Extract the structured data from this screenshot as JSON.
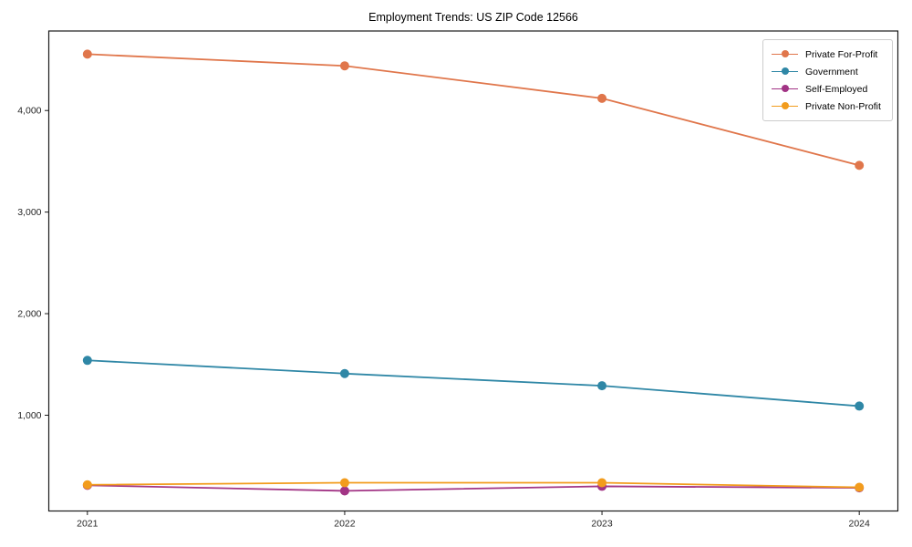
{
  "title": "Employment Trends: US ZIP Code 12566",
  "chart_data": {
    "type": "line",
    "title": "Employment Trends: US ZIP Code 12566",
    "xlabel": "",
    "ylabel": "",
    "x": [
      2021,
      2022,
      2023,
      2024
    ],
    "x_tick_labels": [
      "2021",
      "2022",
      "2023",
      "2024"
    ],
    "y_ticks": [
      {
        "value": 1000,
        "label": "1,000"
      },
      {
        "value": 2000,
        "label": "2,000"
      },
      {
        "value": 3000,
        "label": "3,000"
      },
      {
        "value": 4000,
        "label": "4,000"
      }
    ],
    "xlim": [
      2020.85,
      2024.15
    ],
    "ylim": [
      57,
      4783
    ],
    "grid": false,
    "legend_position": "upper right",
    "series": [
      {
        "name": "Private For-Profit",
        "color": "#E0764B",
        "values": [
          4555,
          4440,
          4120,
          3460
        ]
      },
      {
        "name": "Government",
        "color": "#2F87A6",
        "values": [
          1540,
          1410,
          1290,
          1090
        ]
      },
      {
        "name": "Self-Employed",
        "color": "#A23485",
        "values": [
          310,
          255,
          300,
          285
        ]
      },
      {
        "name": "Private Non-Profit",
        "color": "#F29C1D",
        "values": [
          315,
          335,
          335,
          290
        ]
      }
    ]
  },
  "colors": {
    "background": "#ffffff",
    "spine": "#1a1a1a",
    "tick_label": "#262626",
    "legend_border": "#cccccc"
  }
}
